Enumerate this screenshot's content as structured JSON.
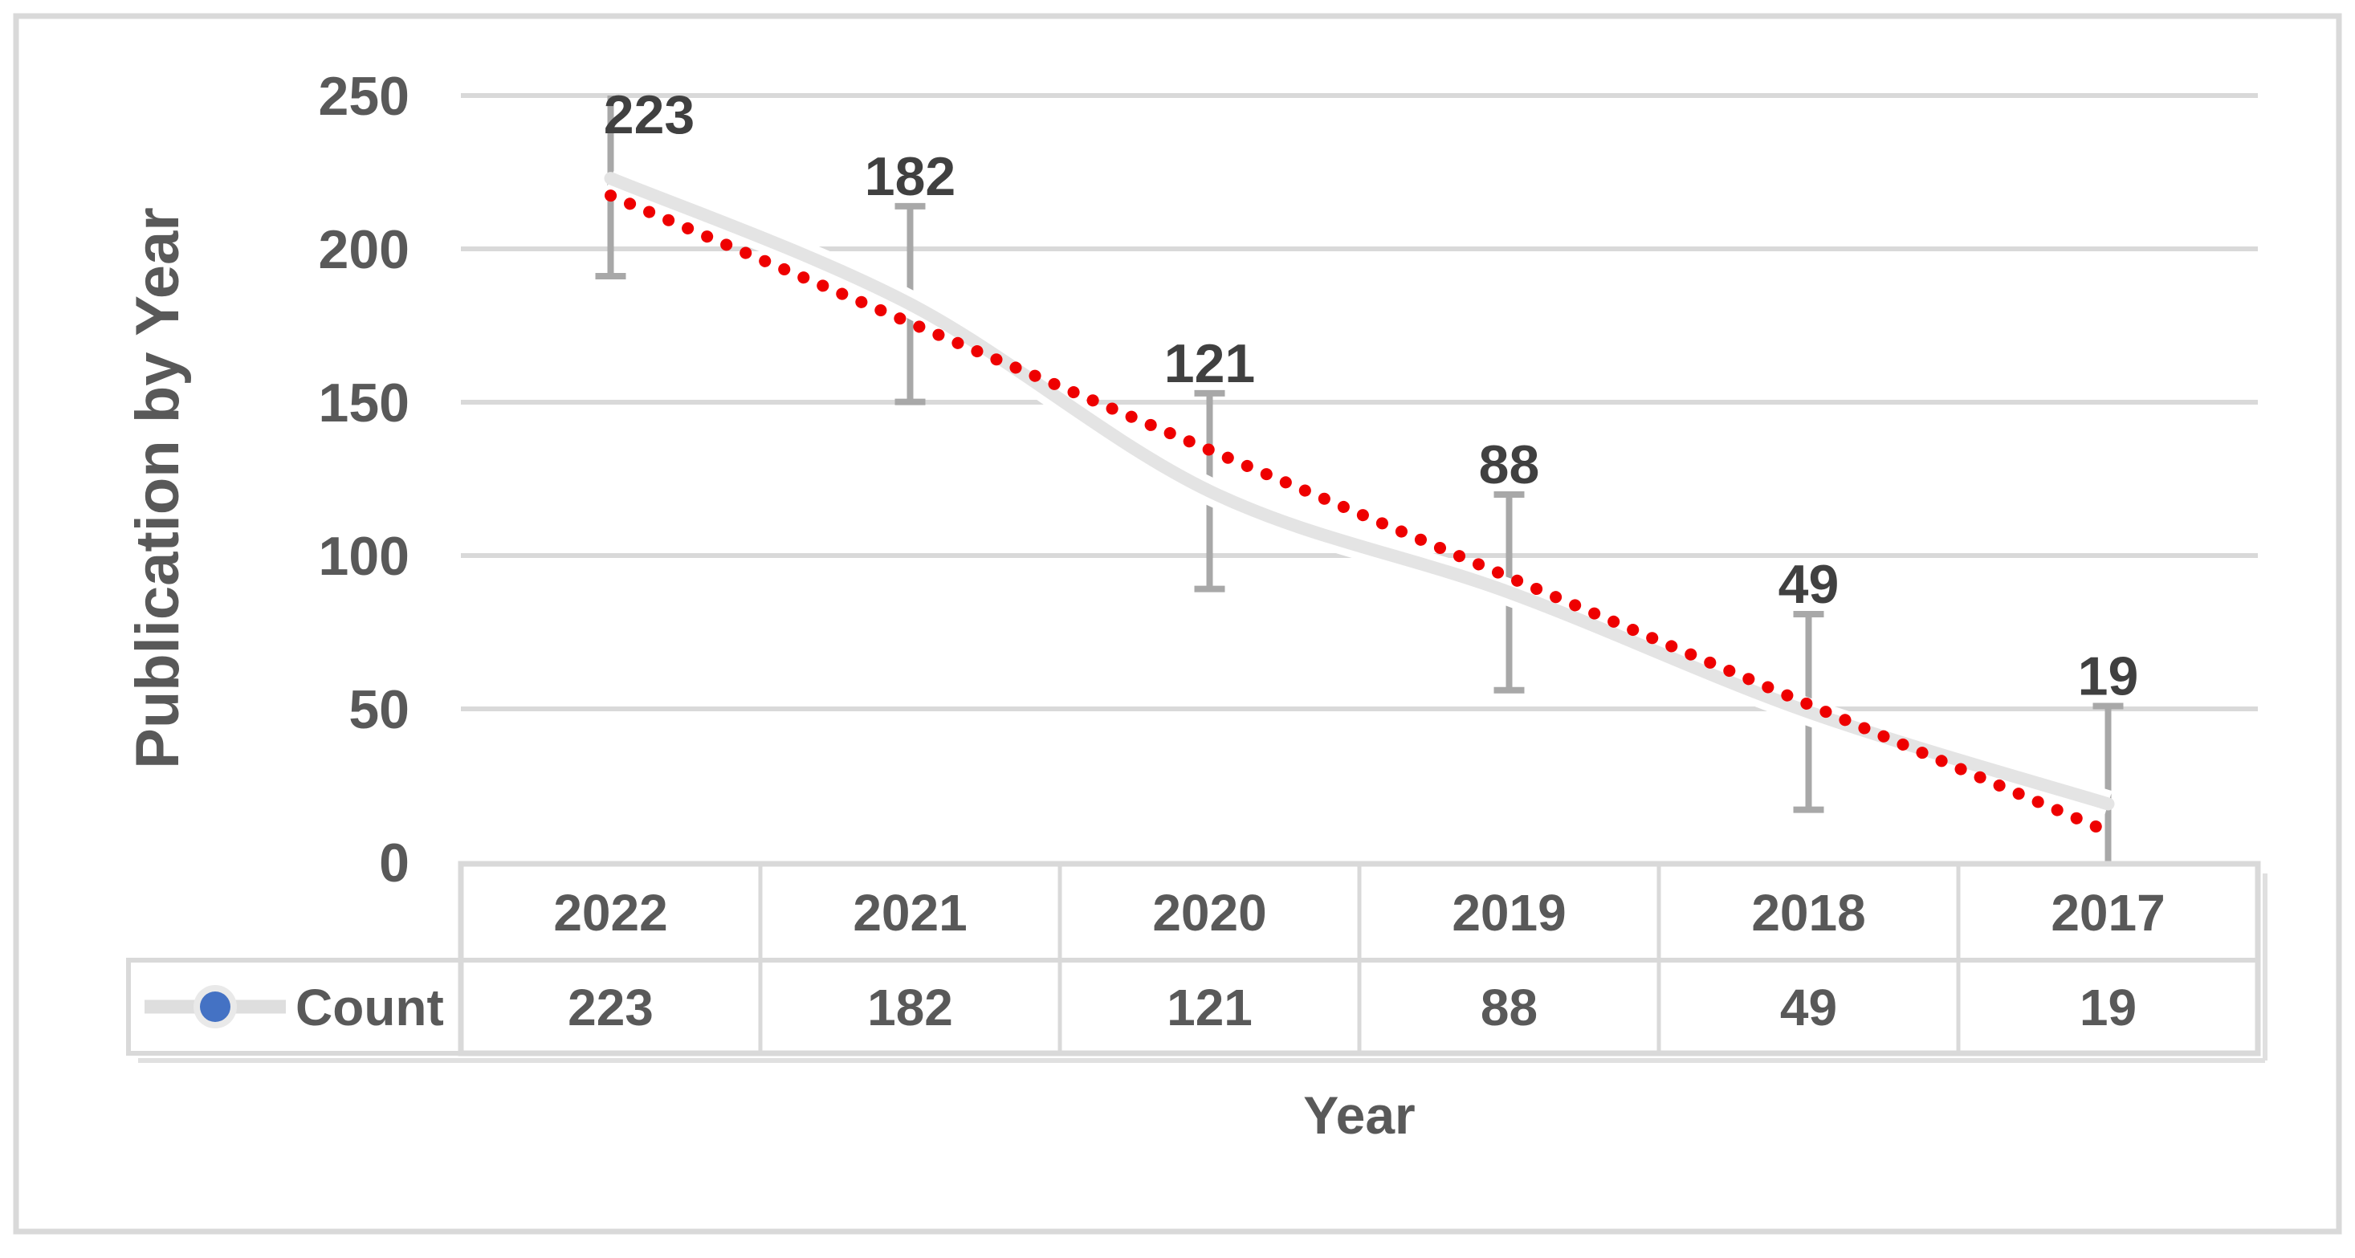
{
  "chart_data": {
    "type": "line",
    "categories": [
      "2022",
      "2021",
      "2020",
      "2019",
      "2018",
      "2017"
    ],
    "series": [
      {
        "name": "Count",
        "values": [
          223,
          182,
          121,
          88,
          49,
          19
        ]
      }
    ],
    "xlabel": "Year",
    "ylabel": "Publication by Year",
    "yticks": [
      0,
      50,
      100,
      150,
      200,
      250
    ],
    "ylim": [
      0,
      250
    ],
    "grid": true,
    "legend_position": "data-table-left",
    "data_table": true,
    "trendline": {
      "series": "Count",
      "type": "linear",
      "style": "round-dot",
      "color": "#ee0000"
    },
    "error_bars": {
      "type": "standard_error",
      "amount": 31.9,
      "color": "#a8a8a8"
    },
    "legend": {
      "label": "Count",
      "marker": "circle",
      "marker_color": "#4472c4",
      "line_color": "#dedede"
    }
  },
  "colors": {
    "background": "#ffffff",
    "frame_border": "#d9d9d9",
    "gridline": "#d9d9d9",
    "table_border": "#d9d9d9",
    "table_shadow": "#e0e0e0",
    "series_line": "#e4e4e4",
    "series_halo": "#ffffff",
    "trend": "#ee0000",
    "error_bar": "#a8a8a8",
    "tick_text": "#595959",
    "data_label_text": "#404040",
    "table_text": "#595959",
    "axis_title_text": "#595959",
    "legend_halo": "#e9e9e9"
  }
}
